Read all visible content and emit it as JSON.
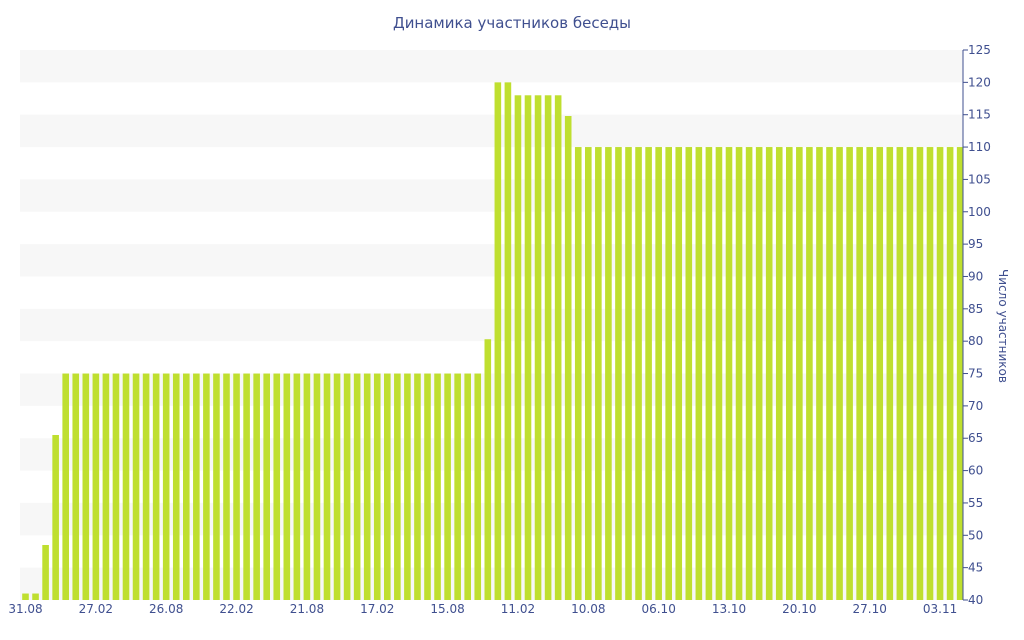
{
  "chart_data": {
    "type": "bar",
    "title": "Динамика участников беседы",
    "xlabel": "",
    "ylabel": "Число участников",
    "ylim": [
      40,
      125
    ],
    "yticks": [
      40,
      45,
      50,
      55,
      60,
      65,
      70,
      75,
      80,
      85,
      90,
      95,
      100,
      105,
      110,
      115,
      120,
      125
    ],
    "y_axis_position": "right",
    "grid": "alternating horizontal bands",
    "xtick_labels": [
      {
        "label": "31.08",
        "index": 0
      },
      {
        "label": "27.02",
        "index": 7
      },
      {
        "label": "26.08",
        "index": 14
      },
      {
        "label": "22.02",
        "index": 21
      },
      {
        "label": "21.08",
        "index": 28
      },
      {
        "label": "17.02",
        "index": 35
      },
      {
        "label": "15.08",
        "index": 42
      },
      {
        "label": "11.02",
        "index": 49
      },
      {
        "label": "10.08",
        "index": 56
      },
      {
        "label": "06.10",
        "index": 63
      },
      {
        "label": "13.10",
        "index": 70
      },
      {
        "label": "20.10",
        "index": 77
      },
      {
        "label": "27.10",
        "index": 84
      },
      {
        "label": "03.11",
        "index": 91
      }
    ],
    "values": [
      41,
      41,
      48.5,
      65.5,
      75,
      75,
      75,
      75,
      75,
      75,
      75,
      75,
      75,
      75,
      75,
      75,
      75,
      75,
      75,
      75,
      75,
      75,
      75,
      75,
      75,
      75,
      75,
      75,
      75,
      75,
      75,
      75,
      75,
      75,
      75,
      75,
      75,
      75,
      75,
      75,
      75,
      75,
      75,
      75,
      75,
      75,
      80.3,
      120,
      120,
      118,
      118,
      118,
      118,
      118,
      114.8,
      110,
      110,
      110,
      110,
      110,
      110,
      110,
      110,
      110,
      110,
      110,
      110,
      110,
      110,
      110,
      110,
      110,
      110,
      110,
      110,
      110,
      110,
      110,
      110,
      110,
      110,
      110,
      110,
      110,
      110,
      110,
      110,
      110,
      110,
      110,
      110,
      110,
      110,
      110
    ],
    "colors": {
      "bar": "#bfdf2f",
      "band": "#f7f7f7",
      "text": "#3f4f8f",
      "axis": "#3f4f8f"
    }
  }
}
